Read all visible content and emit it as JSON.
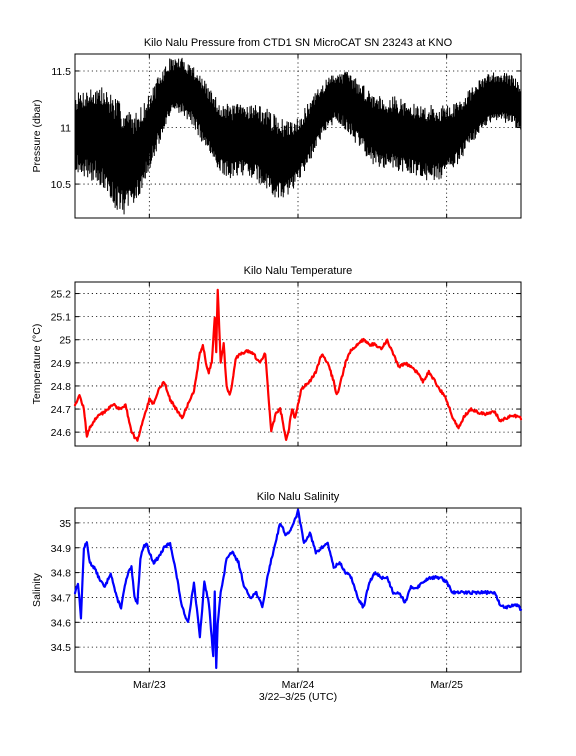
{
  "chart_data": [
    {
      "type": "line",
      "title": "Kilo Nalu Pressure from CTD1 SN MicroCAT SN 23243 at KNO",
      "ylabel": "Pressure (dbar)",
      "xlabel": "",
      "xlim": [
        0.0,
        3.0
      ],
      "ylim": [
        10.2,
        11.65
      ],
      "yticks": [
        10.5,
        11,
        11.5
      ],
      "ytick_labels": [
        "10.5",
        "11",
        "11.5"
      ],
      "xticks": [
        0.5,
        1.5,
        2.5
      ],
      "xtick_labels": [],
      "grid": true,
      "color": "#000000",
      "band": true,
      "series": [
        {
          "x": [
            0.0,
            0.08,
            0.16,
            0.24,
            0.32,
            0.4,
            0.48,
            0.56,
            0.64,
            0.72,
            0.8,
            0.88,
            0.96,
            1.04,
            1.12,
            1.2,
            1.28,
            1.36,
            1.44,
            1.52,
            1.6,
            1.68,
            1.76,
            1.84,
            1.92,
            2.0,
            2.08,
            2.16,
            2.24,
            2.32,
            2.4,
            2.48,
            2.56,
            2.64,
            2.72,
            2.8,
            2.88,
            2.96,
            3.0
          ],
          "low": [
            10.62,
            10.55,
            10.5,
            10.33,
            10.22,
            10.3,
            10.55,
            10.82,
            11.1,
            11.12,
            11.0,
            10.8,
            10.6,
            10.55,
            10.58,
            10.55,
            10.45,
            10.35,
            10.4,
            10.55,
            10.75,
            10.95,
            11.05,
            10.95,
            10.8,
            10.68,
            10.62,
            10.62,
            10.6,
            10.55,
            10.52,
            10.55,
            10.65,
            10.8,
            10.95,
            11.05,
            11.05,
            11.0,
            10.95
          ],
          "high": [
            11.3,
            11.35,
            11.38,
            11.32,
            11.2,
            11.12,
            11.25,
            11.45,
            11.62,
            11.62,
            11.55,
            11.4,
            11.25,
            11.2,
            11.22,
            11.22,
            11.18,
            11.1,
            11.05,
            11.12,
            11.28,
            11.42,
            11.5,
            11.5,
            11.4,
            11.32,
            11.28,
            11.28,
            11.22,
            11.2,
            11.2,
            11.2,
            11.22,
            11.32,
            11.42,
            11.5,
            11.5,
            11.45,
            11.38
          ]
        }
      ]
    },
    {
      "type": "line",
      "title": "Kilo Nalu Temperature",
      "ylabel": "Temperature (°C)",
      "xlabel": "",
      "xlim": [
        0.0,
        3.0
      ],
      "ylim": [
        24.54,
        25.25
      ],
      "yticks": [
        24.6,
        24.7,
        24.8,
        24.9,
        25.0,
        25.1,
        25.2
      ],
      "ytick_labels": [
        "24.6",
        "24.7",
        "24.8",
        "24.9",
        "25",
        "25.1",
        "25.2"
      ],
      "xticks": [
        0.5,
        1.5,
        2.5
      ],
      "xtick_labels": [],
      "grid": true,
      "color": "#ff0000",
      "series": [
        {
          "x": [
            0.0,
            0.03,
            0.06,
            0.08,
            0.1,
            0.14,
            0.18,
            0.22,
            0.26,
            0.3,
            0.34,
            0.38,
            0.42,
            0.46,
            0.48,
            0.5,
            0.53,
            0.56,
            0.6,
            0.64,
            0.68,
            0.7,
            0.72,
            0.76,
            0.8,
            0.84,
            0.86,
            0.88,
            0.9,
            0.92,
            0.94,
            0.95,
            0.96,
            0.98,
            1.0,
            1.02,
            1.04,
            1.06,
            1.08,
            1.12,
            1.16,
            1.2,
            1.24,
            1.28,
            1.32,
            1.35,
            1.38,
            1.4,
            1.42,
            1.44,
            1.46,
            1.48,
            1.5,
            1.52,
            1.54,
            1.58,
            1.62,
            1.66,
            1.7,
            1.74,
            1.76,
            1.78,
            1.82,
            1.86,
            1.9,
            1.94,
            1.98,
            2.02,
            2.06,
            2.1,
            2.14,
            2.18,
            2.22,
            2.26,
            2.3,
            2.34,
            2.38,
            2.42,
            2.46,
            2.5,
            2.54,
            2.58,
            2.62,
            2.66,
            2.7,
            2.74,
            2.78,
            2.82,
            2.86,
            2.9,
            2.94,
            2.98,
            3.0
          ],
          "y": [
            24.72,
            24.76,
            24.7,
            24.58,
            24.62,
            24.66,
            24.68,
            24.7,
            24.72,
            24.7,
            24.72,
            24.6,
            24.56,
            24.66,
            24.7,
            24.74,
            24.72,
            24.78,
            24.82,
            24.74,
            24.7,
            24.68,
            24.66,
            24.72,
            24.78,
            24.94,
            24.98,
            24.9,
            24.86,
            24.9,
            25.1,
            24.95,
            25.22,
            24.9,
            24.98,
            24.8,
            24.76,
            24.82,
            24.92,
            24.94,
            24.95,
            24.94,
            24.9,
            24.94,
            24.6,
            24.68,
            24.7,
            24.64,
            24.56,
            24.62,
            24.7,
            24.66,
            24.72,
            24.78,
            24.8,
            24.82,
            24.86,
            24.94,
            24.9,
            24.82,
            24.76,
            24.8,
            24.9,
            24.96,
            24.98,
            25.0,
            24.98,
            24.98,
            24.96,
            25.0,
            24.94,
            24.88,
            24.9,
            24.88,
            24.86,
            24.82,
            24.86,
            24.82,
            24.78,
            24.74,
            24.66,
            24.62,
            24.67,
            24.7,
            24.69,
            24.68,
            24.68,
            24.69,
            24.65,
            24.66,
            24.67,
            24.67,
            24.66
          ]
        }
      ]
    },
    {
      "type": "line",
      "title": "Kilo Nalu  Salinity",
      "ylabel": "Salinity",
      "xlabel": "3/22–3/25 (UTC)",
      "xlim": [
        0.0,
        3.0
      ],
      "ylim": [
        34.4,
        35.06
      ],
      "yticks": [
        34.5,
        34.6,
        34.7,
        34.8,
        34.9,
        35.0
      ],
      "ytick_labels": [
        "34.5",
        "34.6",
        "34.7",
        "34.8",
        "34.9",
        "35"
      ],
      "xticks": [
        0.5,
        1.5,
        2.5
      ],
      "xtick_labels": [
        "Mar/23",
        "Mar/24",
        "Mar/25"
      ],
      "grid": true,
      "color": "#0000ff",
      "series": [
        {
          "x": [
            0.0,
            0.02,
            0.04,
            0.06,
            0.08,
            0.1,
            0.13,
            0.16,
            0.2,
            0.24,
            0.28,
            0.31,
            0.34,
            0.36,
            0.38,
            0.4,
            0.42,
            0.44,
            0.46,
            0.48,
            0.5,
            0.53,
            0.56,
            0.6,
            0.64,
            0.68,
            0.72,
            0.76,
            0.8,
            0.84,
            0.87,
            0.9,
            0.93,
            0.94,
            0.95,
            0.96,
            0.98,
            1.0,
            1.02,
            1.06,
            1.1,
            1.14,
            1.18,
            1.22,
            1.26,
            1.3,
            1.34,
            1.38,
            1.42,
            1.46,
            1.5,
            1.54,
            1.58,
            1.62,
            1.66,
            1.7,
            1.74,
            1.78,
            1.82,
            1.86,
            1.9,
            1.94,
            1.98,
            2.02,
            2.06,
            2.1,
            2.14,
            2.18,
            2.22,
            2.26,
            2.3,
            2.34,
            2.38,
            2.42,
            2.46,
            2.5,
            2.54,
            2.58,
            2.62,
            2.66,
            2.7,
            2.74,
            2.78,
            2.82,
            2.86,
            2.9,
            2.94,
            2.98,
            3.0
          ],
          "y": [
            34.72,
            34.76,
            34.62,
            34.9,
            34.92,
            34.84,
            34.82,
            34.78,
            34.74,
            34.8,
            34.7,
            34.66,
            34.76,
            34.8,
            34.82,
            34.7,
            34.68,
            34.86,
            34.9,
            34.92,
            34.88,
            34.84,
            34.86,
            34.9,
            34.92,
            34.8,
            34.66,
            34.6,
            34.76,
            34.54,
            34.76,
            34.68,
            34.46,
            34.72,
            34.42,
            34.6,
            34.72,
            34.78,
            34.86,
            34.88,
            34.84,
            34.74,
            34.7,
            34.72,
            34.66,
            34.8,
            34.9,
            35.0,
            34.95,
            34.98,
            35.05,
            34.92,
            34.96,
            34.88,
            34.9,
            34.92,
            34.82,
            34.84,
            34.8,
            34.78,
            34.7,
            34.66,
            34.76,
            34.8,
            34.78,
            34.78,
            34.72,
            34.72,
            34.68,
            34.74,
            34.74,
            34.76,
            34.78,
            34.78,
            34.78,
            34.76,
            34.72,
            34.72,
            34.72,
            34.72,
            34.72,
            34.72,
            34.72,
            34.72,
            34.67,
            34.66,
            34.67,
            34.67,
            34.65
          ]
        }
      ]
    }
  ]
}
